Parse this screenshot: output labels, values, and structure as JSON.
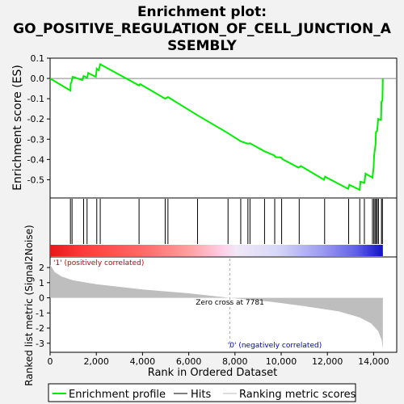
{
  "chart_data": {
    "type": "line",
    "title_lines": [
      "Enrichment plot:",
      "GO_POSITIVE_REGULATION_OF_CELL_JUNCTION_A",
      "SSEMBLY"
    ],
    "es_panel": {
      "ylabel": "Enrichment score (ES)",
      "ylim": [
        -0.59,
        0.1
      ],
      "yticks": [
        0.1,
        0.0,
        -0.1,
        -0.2,
        -0.3,
        -0.4,
        -0.5
      ],
      "ytick_labels": [
        "0.1",
        "0.0",
        "-0.1",
        "-0.2",
        "-0.3",
        "-0.4",
        "-0.5"
      ],
      "series": {
        "name": "Enrichment profile",
        "color": "#00ee00",
        "points": [
          [
            0,
            0.0
          ],
          [
            880,
            -0.06
          ],
          [
            890,
            -0.025
          ],
          [
            920,
            -0.02
          ],
          [
            980,
            0.008
          ],
          [
            1400,
            -0.008
          ],
          [
            1450,
            0.012
          ],
          [
            1600,
            0.003
          ],
          [
            1650,
            0.027
          ],
          [
            1980,
            0.008
          ],
          [
            2020,
            0.048
          ],
          [
            2100,
            0.04
          ],
          [
            2170,
            0.07
          ],
          [
            3850,
            -0.035
          ],
          [
            3900,
            -0.028
          ],
          [
            4980,
            -0.1
          ],
          [
            5100,
            -0.092
          ],
          [
            6380,
            -0.182
          ],
          [
            7700,
            -0.27
          ],
          [
            8250,
            -0.31
          ],
          [
            8550,
            -0.322
          ],
          [
            8650,
            -0.32
          ],
          [
            9280,
            -0.36
          ],
          [
            9700,
            -0.38
          ],
          [
            9750,
            -0.388
          ],
          [
            10000,
            -0.39
          ],
          [
            10050,
            -0.398
          ],
          [
            10750,
            -0.44
          ],
          [
            10850,
            -0.432
          ],
          [
            11850,
            -0.5
          ],
          [
            11900,
            -0.485
          ],
          [
            12900,
            -0.545
          ],
          [
            12950,
            -0.525
          ],
          [
            13400,
            -0.55
          ],
          [
            13430,
            -0.51
          ],
          [
            13600,
            -0.515
          ],
          [
            13650,
            -0.47
          ],
          [
            13950,
            -0.49
          ],
          [
            14000,
            -0.44
          ],
          [
            14020,
            -0.38
          ],
          [
            14080,
            -0.33
          ],
          [
            14100,
            -0.265
          ],
          [
            14150,
            -0.26
          ],
          [
            14200,
            -0.2
          ],
          [
            14320,
            -0.205
          ],
          [
            14340,
            -0.115
          ],
          [
            14380,
            -0.11
          ],
          [
            14400,
            0.0
          ]
        ]
      }
    },
    "hits": [
      880,
      950,
      1450,
      1600,
      2020,
      2170,
      3850,
      4980,
      5100,
      6380,
      7700,
      8250,
      8560,
      8650,
      9280,
      9720,
      10020,
      10780,
      11880,
      12920,
      13400,
      13600,
      13950,
      14010,
      14060,
      14110,
      14160,
      14210,
      14340,
      14380
    ],
    "rank_panel": {
      "ylabel": "Ranked list metric (Signal2Noise)",
      "ylim": [
        -3.6,
        2.7
      ],
      "yticks": [
        2,
        1,
        0,
        -1,
        -2,
        -3
      ],
      "ytick_labels": [
        "2",
        "1",
        "0",
        "-1",
        "-2",
        "-3"
      ],
      "metric_profile": [
        [
          0,
          2.2
        ],
        [
          200,
          1.7
        ],
        [
          500,
          1.4
        ],
        [
          1000,
          1.15
        ],
        [
          2000,
          0.9
        ],
        [
          4000,
          0.55
        ],
        [
          6000,
          0.3
        ],
        [
          7781,
          0.0
        ],
        [
          9500,
          -0.25
        ],
        [
          11000,
          -0.55
        ],
        [
          12500,
          -0.9
        ],
        [
          13400,
          -1.3
        ],
        [
          13900,
          -1.7
        ],
        [
          14200,
          -2.2
        ],
        [
          14350,
          -2.8
        ],
        [
          14400,
          -3.4
        ]
      ],
      "zero_cross_label": "Zero cross at 7781",
      "zero_cross_rank": 7781,
      "positive_label": "'1' (positively correlated)",
      "negative_label": "'0' (negatively correlated)"
    },
    "xlabel": "Rank in Ordered Dataset",
    "xlim": [
      0,
      15000
    ],
    "xticks": [
      0,
      2000,
      4000,
      6000,
      8000,
      10000,
      12000,
      14000
    ],
    "xtick_labels": [
      "0",
      "2,000",
      "4,000",
      "6,000",
      "8,000",
      "10,000",
      "12,000",
      "14,000"
    ],
    "n_genes": 14400,
    "legend": {
      "placement": "bottom",
      "items": [
        {
          "label": "Enrichment profile",
          "color": "#00ee00"
        },
        {
          "label": "Hits",
          "color": "#000000"
        },
        {
          "label": "Ranking metric scores",
          "color": "#bbbbbb"
        }
      ]
    },
    "colors": {
      "positive": "#ff0000",
      "negative": "#0000ff",
      "metric_fill": "#bebebe",
      "positive_text": "#cc0000",
      "negative_text": "#0000cc"
    }
  }
}
